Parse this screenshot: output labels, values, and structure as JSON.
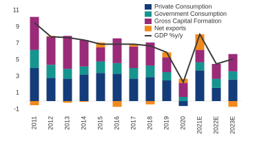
{
  "chart_data": {
    "type": "bar",
    "stacked": true,
    "categories": [
      "2011",
      "2012",
      "2013",
      "2014",
      "2015",
      "2016",
      "2017",
      "2018",
      "2019",
      "2020",
      "2021E",
      "2022E",
      "2023E"
    ],
    "ylim": [
      -1.5,
      11.5
    ],
    "yticks": [
      -1,
      1,
      3,
      5,
      7,
      9,
      11
    ],
    "grid": false,
    "series": [
      {
        "name": "Private Consumption",
        "color": "#143c7a",
        "values": [
          4.0,
          2.8,
          2.7,
          3.2,
          3.4,
          3.3,
          2.7,
          2.9,
          2.5,
          -0.6,
          3.7,
          1.6,
          2.6
        ]
      },
      {
        "name": "Government Consumption",
        "color": "#16958f",
        "values": [
          2.2,
          1.6,
          1.2,
          1.0,
          1.4,
          1.3,
          1.3,
          1.4,
          1.0,
          0.5,
          1.0,
          1.1,
          1.0
        ]
      },
      {
        "name": "Gross Capital Formation",
        "color": "#9a2b78",
        "values": [
          4.0,
          3.4,
          4.0,
          3.2,
          1.7,
          3.0,
          2.6,
          2.8,
          1.8,
          1.7,
          1.5,
          1.8,
          2.1
        ]
      },
      {
        "name": "Net exports",
        "color": "#f18a1d",
        "values": [
          -0.5,
          0.1,
          -0.2,
          -0.1,
          0.6,
          -0.7,
          0.3,
          -0.4,
          0.6,
          0.5,
          1.9,
          0.0,
          -0.7
        ]
      },
      {
        "name": "GDP %y/y",
        "color": "#3a3a3a",
        "type": "line",
        "values": [
          9.5,
          7.8,
          7.7,
          7.4,
          6.9,
          6.9,
          6.9,
          6.7,
          5.9,
          2.3,
          8.1,
          4.5,
          5.1
        ]
      }
    ]
  }
}
